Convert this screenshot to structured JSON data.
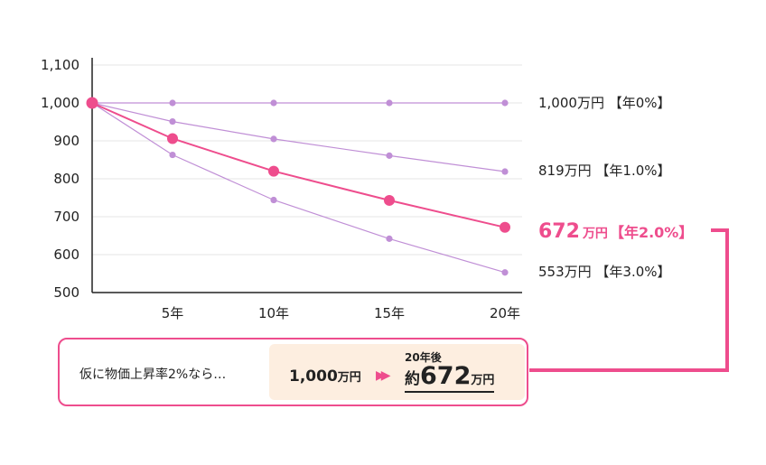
{
  "chart_data": {
    "type": "line",
    "x_categories": [
      "",
      "5年",
      "10年",
      "15年",
      "20年"
    ],
    "y_ticks": [
      "1,100",
      "1,000",
      "900",
      "800",
      "700",
      "600",
      "500"
    ],
    "ylim": [
      500,
      1100
    ],
    "series": [
      {
        "rate": "0%",
        "values": [
          1000,
          1000,
          1000,
          1000,
          1000
        ],
        "color": "#c08fd6",
        "highlight": false
      },
      {
        "rate": "1.0%",
        "values": [
          1000,
          951,
          905,
          861,
          819
        ],
        "color": "#c08fd6",
        "highlight": false
      },
      {
        "rate": "2.0%",
        "values": [
          1000,
          906,
          820,
          743,
          672
        ],
        "color": "#ee4d8d",
        "highlight": true
      },
      {
        "rate": "3.0%",
        "values": [
          1000,
          863,
          744,
          642,
          553
        ],
        "color": "#c08fd6",
        "highlight": false
      }
    ],
    "end_labels": [
      {
        "amount": "1,000",
        "unit": "万円",
        "rate_text": "【年0%】"
      },
      {
        "amount": "819",
        "unit": "万円",
        "rate_text": "【年1.0%】"
      },
      {
        "amount": "672",
        "unit": "万円",
        "rate_text": "【年2.0%】"
      },
      {
        "amount": "553",
        "unit": "万円",
        "rate_text": "【年3.0%】"
      }
    ]
  },
  "callout": {
    "lead": "仮に物価上昇率2%なら…",
    "from_amount": "1,000",
    "from_unit": "万円",
    "arrow": "▶▶",
    "after_label": "20年後",
    "to_prefix": "約",
    "to_amount": "672",
    "to_unit": "万円"
  },
  "colors": {
    "accent": "#ee4d8d",
    "secondary": "#c08fd6",
    "callout_bg": "#fdeee0",
    "grid": "#e6e6e6"
  }
}
